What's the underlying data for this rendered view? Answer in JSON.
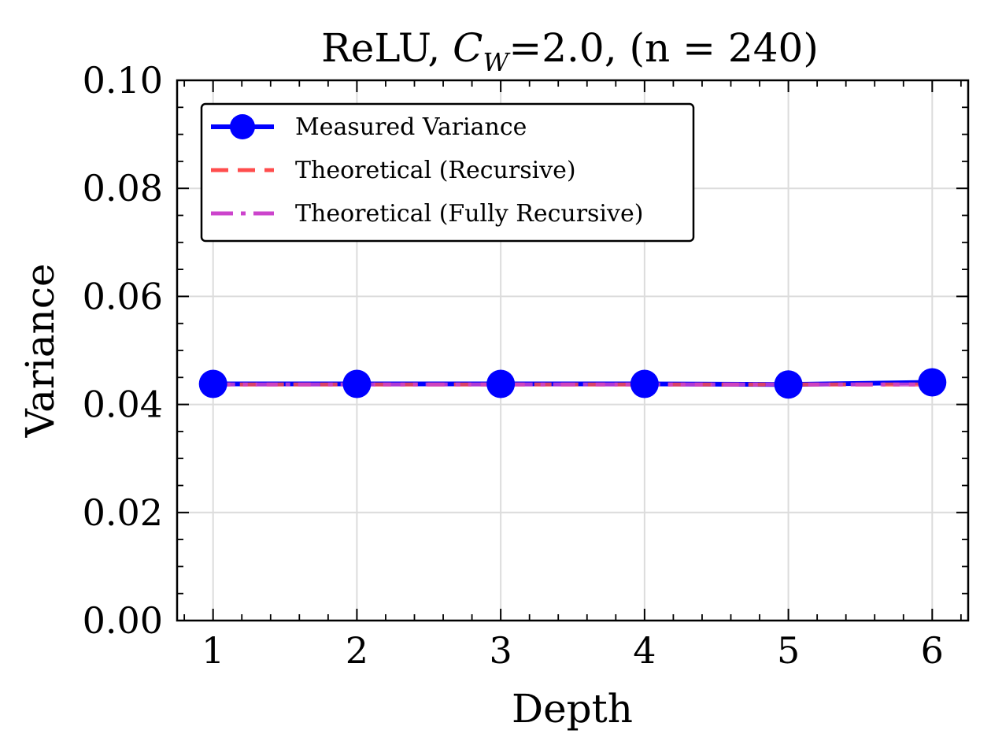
{
  "chart_data": {
    "type": "line",
    "title_prefix": "ReLU, ",
    "title_symbol": "C",
    "title_subscript": "W",
    "title_suffix": "=2.0, (n = 240)",
    "xlabel": "Depth",
    "ylabel": "Variance",
    "xlim": [
      0.75,
      6.25
    ],
    "ylim": [
      0.0,
      0.1
    ],
    "x": [
      1,
      2,
      3,
      4,
      5,
      6
    ],
    "xticks": [
      1,
      2,
      3,
      4,
      5,
      6
    ],
    "xtick_labels": [
      "1",
      "2",
      "3",
      "4",
      "5",
      "6"
    ],
    "yticks": [
      0.0,
      0.02,
      0.04,
      0.06,
      0.08,
      0.1
    ],
    "ytick_labels": [
      "0.00",
      "0.02",
      "0.04",
      "0.06",
      "0.08",
      "0.10"
    ],
    "grid": true,
    "legend_position": "top-left",
    "series": [
      {
        "name": "Measured Variance",
        "style": "solid-markers",
        "color": "#0000ff",
        "values": [
          0.0438,
          0.0438,
          0.0438,
          0.0438,
          0.0437,
          0.0441
        ]
      },
      {
        "name": "Theoretical (Recursive)",
        "style": "dashed",
        "color": "#ff4d4d",
        "values": [
          0.0437,
          0.0437,
          0.0437,
          0.0437,
          0.0437,
          0.0437
        ]
      },
      {
        "name": "Theoretical (Fully Recursive)",
        "style": "dashdot",
        "color": "#cc44cc",
        "values": [
          0.0437,
          0.0437,
          0.0437,
          0.0437,
          0.0437,
          0.0437
        ]
      }
    ]
  }
}
